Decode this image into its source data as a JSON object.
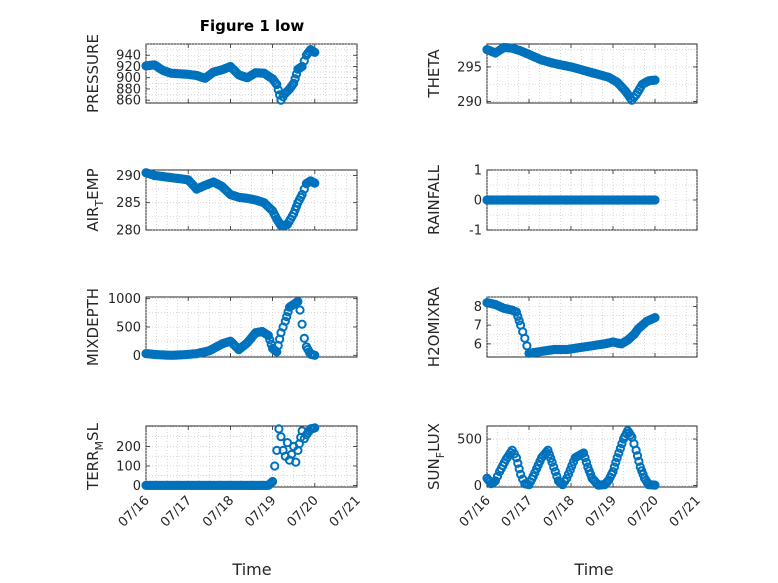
{
  "figure": {
    "title": "Figure 1 low",
    "marker_color": "#0072BD"
  },
  "chart_data": [
    {
      "id": "pressure",
      "type": "scatter",
      "ylabel": "PRESSURE",
      "ylim": [
        855,
        960
      ],
      "yticks": [
        860,
        880,
        900,
        920,
        940
      ],
      "xlim": [
        0,
        5
      ],
      "xticks": [
        0,
        1,
        2,
        3,
        4,
        5
      ],
      "xticklabels": [
        "07/16",
        "07/17",
        "07/18",
        "07/19",
        "07/20",
        "07/21"
      ],
      "show_xticklabels": false,
      "x": [
        0,
        0.2,
        0.4,
        0.6,
        0.8,
        1.0,
        1.2,
        1.4,
        1.6,
        1.8,
        2.0,
        2.2,
        2.4,
        2.6,
        2.8,
        3.0,
        3.1,
        3.2,
        3.3,
        3.4,
        3.5,
        3.6,
        3.7,
        3.8,
        3.9,
        4.0
      ],
      "y": [
        921,
        923,
        913,
        908,
        907,
        906,
        904,
        899,
        910,
        914,
        920,
        905,
        900,
        909,
        908,
        898,
        888,
        860,
        872,
        880,
        890,
        915,
        920,
        940,
        950,
        945
      ]
    },
    {
      "id": "theta",
      "type": "scatter",
      "ylabel": "THETA",
      "ylim": [
        289.8,
        298.3
      ],
      "yticks": [
        290,
        295
      ],
      "xlim": [
        0,
        5
      ],
      "xticks": [
        0,
        1,
        2,
        3,
        4,
        5
      ],
      "xticklabels": [
        "07/16",
        "07/17",
        "07/18",
        "07/19",
        "07/20",
        "07/21"
      ],
      "show_xticklabels": false,
      "x": [
        0,
        0.2,
        0.4,
        0.6,
        0.8,
        1.0,
        1.3,
        1.6,
        2.0,
        2.3,
        2.6,
        2.9,
        3.1,
        3.3,
        3.45,
        3.55,
        3.7,
        3.85,
        4.0
      ],
      "y": [
        297.5,
        297.0,
        297.8,
        297.7,
        297.3,
        296.8,
        296.0,
        295.5,
        295.0,
        294.5,
        294.0,
        293.5,
        292.8,
        291.5,
        290.2,
        291.0,
        292.5,
        293.0,
        293.1
      ]
    },
    {
      "id": "air_temp",
      "type": "scatter",
      "ylabel_main": "AIR",
      "ylabel_sub": "T",
      "ylabel_tail": "EMP",
      "ylim": [
        280,
        291
      ],
      "yticks": [
        280,
        285,
        290
      ],
      "xlim": [
        0,
        5
      ],
      "xticks": [
        0,
        1,
        2,
        3,
        4,
        5
      ],
      "xticklabels": [
        "07/16",
        "07/17",
        "07/18",
        "07/19",
        "07/20",
        "07/21"
      ],
      "show_xticklabels": false,
      "x": [
        0,
        0.2,
        0.4,
        0.6,
        0.8,
        1.0,
        1.2,
        1.4,
        1.6,
        1.8,
        2.0,
        2.2,
        2.4,
        2.6,
        2.8,
        3.0,
        3.1,
        3.2,
        3.35,
        3.5,
        3.6,
        3.7,
        3.8,
        3.9,
        4.0
      ],
      "y": [
        290.5,
        290.0,
        289.8,
        289.6,
        289.4,
        289.2,
        287.5,
        288.2,
        288.8,
        288.0,
        286.5,
        286.0,
        285.8,
        285.5,
        285.0,
        283.5,
        282.0,
        280.8,
        281.0,
        283.0,
        285.0,
        286.5,
        288.5,
        289.0,
        288.6
      ]
    },
    {
      "id": "rainfall",
      "type": "scatter",
      "ylabel": "RAINFALL",
      "ylim": [
        -1,
        1
      ],
      "yticks": [
        -1,
        0,
        1
      ],
      "xlim": [
        0,
        5
      ],
      "xticks": [
        0,
        1,
        2,
        3,
        4,
        5
      ],
      "xticklabels": [
        "07/16",
        "07/17",
        "07/18",
        "07/19",
        "07/20",
        "07/21"
      ],
      "show_xticklabels": false,
      "x": [
        0,
        4.0
      ],
      "y": [
        0,
        0
      ]
    },
    {
      "id": "mixdepth",
      "type": "scatter",
      "ylabel": "MIXDEPTH",
      "ylim": [
        -30,
        1030
      ],
      "yticks": [
        0,
        500,
        1000
      ],
      "xlim": [
        0,
        5
      ],
      "xticks": [
        0,
        1,
        2,
        3,
        4,
        5
      ],
      "xticklabels": [
        "07/16",
        "07/17",
        "07/18",
        "07/19",
        "07/20",
        "07/21"
      ],
      "show_xticklabels": false,
      "x": [
        0,
        0.3,
        0.6,
        0.9,
        1.2,
        1.5,
        1.8,
        2.0,
        2.2,
        2.4,
        2.6,
        2.75,
        2.9,
        3.0,
        3.1,
        3.2,
        3.3,
        3.4,
        3.5,
        3.6,
        3.65,
        3.7,
        3.75,
        3.8,
        3.9,
        4.0
      ],
      "y": [
        30,
        10,
        0,
        10,
        30,
        80,
        200,
        250,
        100,
        220,
        400,
        420,
        350,
        120,
        60,
        400,
        600,
        850,
        900,
        950,
        800,
        550,
        300,
        150,
        20,
        0
      ]
    },
    {
      "id": "h2omixra",
      "type": "scatter",
      "ylabel": "H2OMIXRA",
      "ylim": [
        5.3,
        8.5
      ],
      "yticks": [
        6,
        7,
        8
      ],
      "xlim": [
        0,
        5
      ],
      "xticks": [
        0,
        1,
        2,
        3,
        4,
        5
      ],
      "xticklabels": [
        "07/16",
        "07/17",
        "07/18",
        "07/19",
        "07/20",
        "07/21"
      ],
      "show_xticklabels": false,
      "x": [
        0,
        0.2,
        0.4,
        0.6,
        0.7,
        0.8,
        0.9,
        1.0,
        1.3,
        1.6,
        1.9,
        2.2,
        2.5,
        2.8,
        3.0,
        3.2,
        3.35,
        3.5,
        3.6,
        3.7,
        3.8,
        3.9,
        4.0
      ],
      "y": [
        8.2,
        8.1,
        7.9,
        7.8,
        7.7,
        7.0,
        6.3,
        5.5,
        5.6,
        5.7,
        5.7,
        5.8,
        5.9,
        6.0,
        6.1,
        6.0,
        6.2,
        6.5,
        6.8,
        7.0,
        7.2,
        7.3,
        7.4
      ]
    },
    {
      "id": "terr_msl",
      "type": "scatter",
      "ylabel_main": "TERR",
      "ylabel_sub": "M",
      "ylabel_tail": "SL",
      "ylim": [
        -8,
        305
      ],
      "yticks": [
        0,
        100,
        200
      ],
      "xlim": [
        0,
        5
      ],
      "xticks": [
        0,
        1,
        2,
        3,
        4,
        5
      ],
      "xticklabels": [
        "07/16",
        "07/17",
        "07/18",
        "07/19",
        "07/20",
        "07/21"
      ],
      "show_xticklabels": true,
      "x": [
        0,
        2.9,
        3.0,
        3.05,
        3.1,
        3.15,
        3.2,
        3.25,
        3.3,
        3.35,
        3.4,
        3.45,
        3.5,
        3.55,
        3.6,
        3.7,
        3.75,
        3.8,
        3.9,
        4.0
      ],
      "y": [
        0,
        0,
        20,
        100,
        180,
        290,
        250,
        180,
        150,
        220,
        130,
        160,
        200,
        120,
        180,
        280,
        240,
        260,
        290,
        295
      ]
    },
    {
      "id": "sun_flux",
      "type": "scatter",
      "ylabel_main": "SUN",
      "ylabel_sub": "F",
      "ylabel_tail": "LUX",
      "ylim": [
        -15,
        640
      ],
      "yticks": [
        0,
        500
      ],
      "xlim": [
        0,
        5
      ],
      "xticks": [
        0,
        1,
        2,
        3,
        4,
        5
      ],
      "xticklabels": [
        "07/16",
        "07/17",
        "07/18",
        "07/19",
        "07/20",
        "07/21"
      ],
      "show_xticklabels": true,
      "x": [
        0,
        0.1,
        0.2,
        0.3,
        0.45,
        0.6,
        0.7,
        0.8,
        0.9,
        1.0,
        1.1,
        1.3,
        1.45,
        1.55,
        1.7,
        1.8,
        1.9,
        2.1,
        2.3,
        2.4,
        2.5,
        2.65,
        2.8,
        2.9,
        3.0,
        3.1,
        3.25,
        3.35,
        3.45,
        3.55,
        3.65,
        3.75,
        3.85,
        4.0
      ],
      "y": [
        80,
        20,
        50,
        150,
        280,
        380,
        300,
        120,
        20,
        10,
        100,
        300,
        380,
        250,
        50,
        10,
        80,
        300,
        350,
        200,
        80,
        5,
        10,
        60,
        150,
        300,
        500,
        590,
        520,
        380,
        200,
        80,
        10,
        5
      ]
    }
  ],
  "xlabel": "Time"
}
